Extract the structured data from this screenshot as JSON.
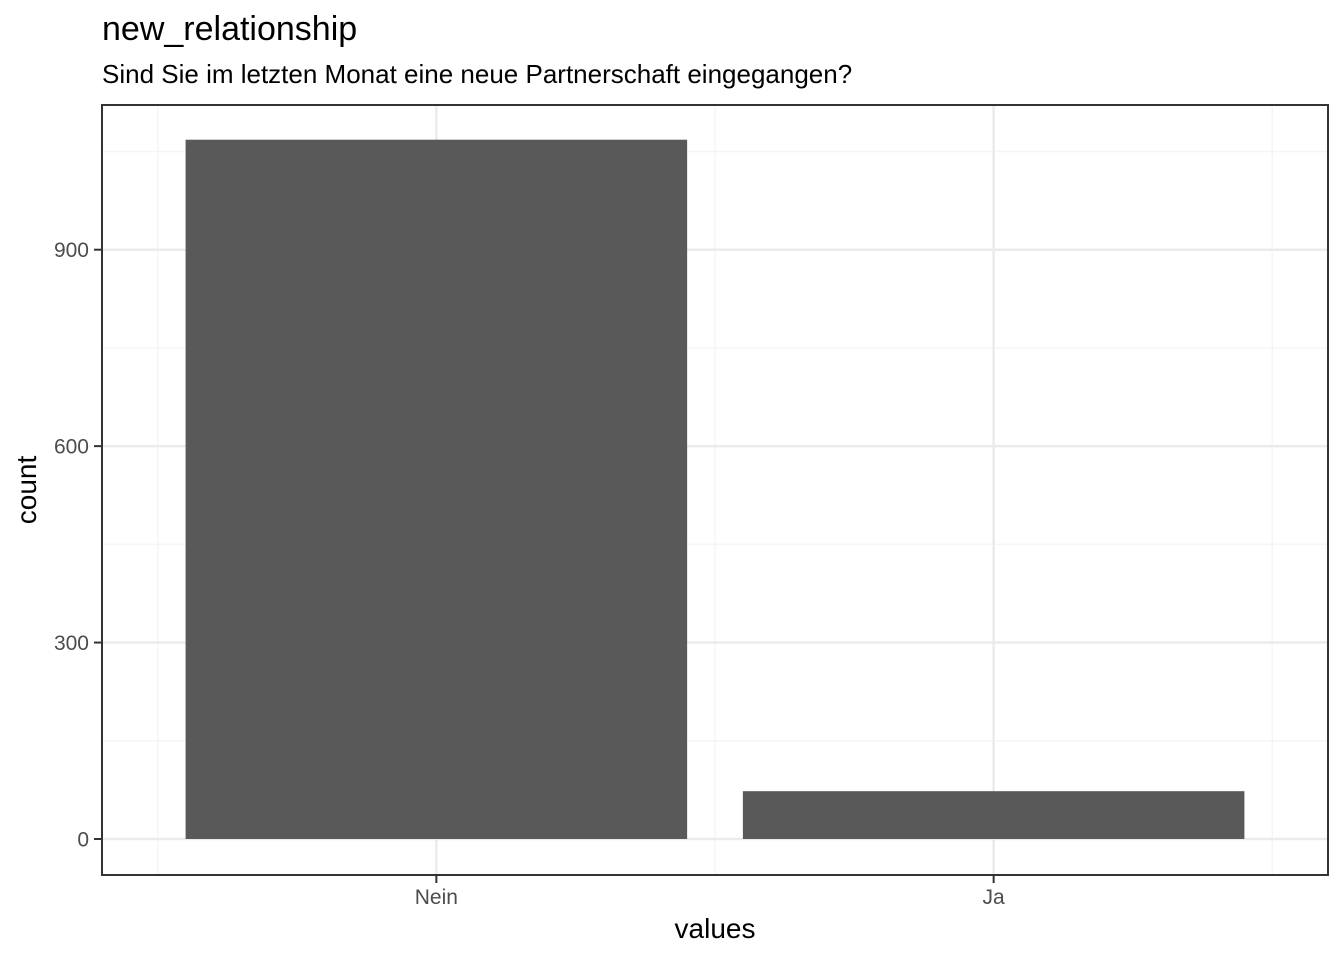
{
  "chart_data": {
    "type": "bar",
    "title": "new_relationship",
    "subtitle": "Sind Sie im letzten Monat eine neue Partnerschaft eingegangen?",
    "xlabel": "values",
    "ylabel": "count",
    "categories": [
      "Nein",
      "Ja"
    ],
    "values": [
      1068,
      73
    ],
    "ylim": [
      -55,
      1121
    ],
    "yticks": [
      0,
      300,
      600,
      900
    ],
    "ytick_labels": [
      "0",
      "300",
      "600",
      "900"
    ],
    "grid": true,
    "legend": "none",
    "colors": {
      "bar": "#595959",
      "grid_major": "#ebebeb",
      "grid_minor": "#f5f5f5",
      "panel_border": "#333333",
      "tick_text": "#4d4d4d"
    }
  }
}
